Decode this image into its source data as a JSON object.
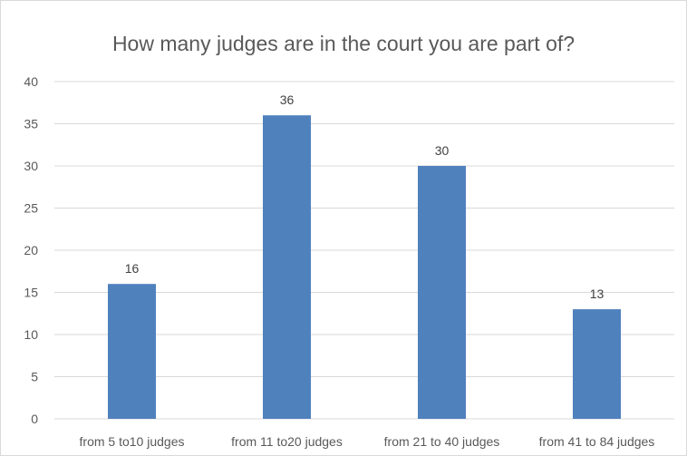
{
  "chart_data": {
    "type": "bar",
    "title": "How many judges are in the court you are part of?",
    "categories": [
      "from 5 to10 judges",
      "from 11 to20 judges",
      "from 21 to 40 judges",
      "from 41 to 84 judges"
    ],
    "values": [
      16,
      36,
      30,
      13
    ],
    "ylim": [
      0,
      40
    ],
    "yticks": [
      0,
      5,
      10,
      15,
      20,
      25,
      30,
      35,
      40
    ],
    "grid": true,
    "data_labels": true,
    "bar_color": "#4f81bd",
    "grid_color": "#d9d9d9"
  }
}
